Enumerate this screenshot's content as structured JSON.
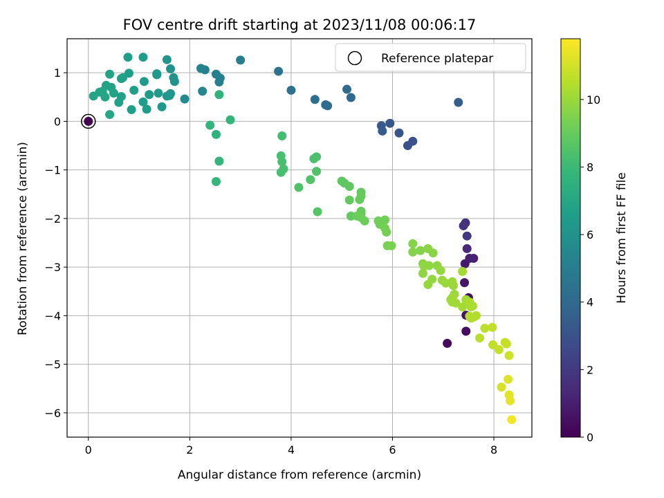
{
  "chart_data": {
    "type": "scatter",
    "title": "FOV centre drift starting at 2023/11/08 00:06:17",
    "xlabel": "Angular distance from reference (arcmin)",
    "ylabel": "Rotation from reference (arcmin)",
    "xlim": [
      -0.42,
      8.75
    ],
    "ylim": [
      -6.5,
      1.7
    ],
    "xticks": [
      0,
      2,
      4,
      6,
      8
    ],
    "yticks": [
      1,
      0,
      -1,
      -2,
      -3,
      -4,
      -5,
      -6
    ],
    "grid": true,
    "legend": {
      "position": "top-right",
      "entries": [
        "Reference platepar"
      ]
    },
    "reference_point": {
      "x": 0,
      "y": 0
    },
    "colorbar": {
      "label": "Hours from first FF file",
      "colormap": "viridis",
      "range": [
        0,
        11.8
      ],
      "ticks": [
        0,
        2,
        4,
        6,
        8,
        10
      ]
    },
    "points": [
      [
        0,
        0,
        0
      ],
      [
        7.08,
        -4.57,
        0.3
      ],
      [
        7.45,
        -4.32,
        0.4
      ],
      [
        7.45,
        -3.99,
        0.6
      ],
      [
        7.5,
        -3.63,
        0.6
      ],
      [
        7.42,
        -3.32,
        0.7
      ],
      [
        7.43,
        -2.93,
        0.8
      ],
      [
        7.52,
        -2.82,
        1.0
      ],
      [
        7.6,
        -2.82,
        1.1
      ],
      [
        7.47,
        -2.62,
        1.3
      ],
      [
        7.44,
        -2.09,
        1.7
      ],
      [
        7.4,
        -2.15,
        1.8
      ],
      [
        7.47,
        -2.36,
        2.0
      ],
      [
        6.4,
        -0.41,
        3.0
      ],
      [
        6.3,
        -0.5,
        3.0
      ],
      [
        6.13,
        -0.24,
        3.1
      ],
      [
        5.95,
        -0.04,
        3.2
      ],
      [
        5.78,
        -0.09,
        3.3
      ],
      [
        5.8,
        -0.2,
        3.4
      ],
      [
        7.3,
        0.39,
        3.5
      ],
      [
        5.18,
        0.49,
        4.0
      ],
      [
        5.1,
        0.66,
        4.1
      ],
      [
        4.72,
        0.32,
        4.2
      ],
      [
        4.68,
        0.34,
        4.2
      ],
      [
        4.47,
        0.45,
        4.3
      ],
      [
        4.0,
        0.64,
        4.4
      ],
      [
        3.75,
        1.03,
        4.5
      ],
      [
        3.0,
        1.26,
        5.0
      ],
      [
        2.58,
        0.81,
        5.1
      ],
      [
        2.6,
        0.89,
        5.1
      ],
      [
        2.52,
        0.97,
        5.1
      ],
      [
        2.3,
        1.06,
        5.2
      ],
      [
        2.22,
        1.09,
        5.3
      ],
      [
        2.25,
        0.62,
        5.5
      ],
      [
        1.9,
        0.46,
        5.6
      ],
      [
        1.7,
        0.82,
        6.0
      ],
      [
        1.68,
        0.9,
        6.0
      ],
      [
        1.62,
        1.08,
        6.0
      ],
      [
        1.55,
        1.27,
        6.1
      ],
      [
        1.6,
        0.53,
        6.2
      ],
      [
        1.62,
        0.57,
        6.2
      ],
      [
        1.55,
        0.52,
        6.3
      ],
      [
        1.45,
        0.3,
        6.3
      ],
      [
        1.35,
        0.96,
        6.3
      ],
      [
        1.35,
        0.98,
        6.3
      ],
      [
        1.38,
        0.58,
        6.4
      ],
      [
        1.2,
        0.55,
        6.4
      ],
      [
        1.1,
        0.82,
        6.4
      ],
      [
        1.08,
        0.4,
        6.5
      ],
      [
        1.15,
        0.25,
        6.5
      ],
      [
        1.08,
        1.32,
        6.5
      ],
      [
        0.9,
        0.64,
        6.6
      ],
      [
        0.8,
        0.99,
        6.6
      ],
      [
        0.78,
        1.32,
        6.6
      ],
      [
        0.85,
        0.24,
        6.6
      ],
      [
        0.65,
        0.88,
        6.7
      ],
      [
        0.68,
        0.9,
        6.7
      ],
      [
        0.65,
        0.51,
        6.7
      ],
      [
        0.6,
        0.39,
        6.7
      ],
      [
        0.5,
        0.58,
        6.8
      ],
      [
        0.45,
        0.7,
        6.8
      ],
      [
        0.42,
        0.97,
        6.8
      ],
      [
        0.35,
        0.74,
        6.8
      ],
      [
        0.28,
        0.62,
        6.9
      ],
      [
        0.33,
        0.5,
        6.9
      ],
      [
        0.22,
        0.6,
        6.9
      ],
      [
        0.1,
        0.52,
        6.9
      ],
      [
        0.42,
        0.14,
        7.0
      ],
      [
        2.58,
        0.55,
        7.6
      ],
      [
        2.52,
        -0.27,
        7.6
      ],
      [
        2.4,
        -0.08,
        7.7
      ],
      [
        2.8,
        0.03,
        7.7
      ],
      [
        2.58,
        -0.82,
        7.7
      ],
      [
        2.52,
        -1.24,
        7.8
      ],
      [
        3.82,
        -0.3,
        8.2
      ],
      [
        3.8,
        -0.71,
        8.3
      ],
      [
        3.82,
        -0.83,
        8.3
      ],
      [
        3.85,
        -0.98,
        8.3
      ],
      [
        3.8,
        -1.05,
        8.3
      ],
      [
        4.5,
        -0.73,
        8.4
      ],
      [
        4.45,
        -0.77,
        8.4
      ],
      [
        4.5,
        -1.03,
        8.5
      ],
      [
        4.38,
        -1.2,
        8.5
      ],
      [
        4.15,
        -1.36,
        8.5
      ],
      [
        4.52,
        -1.86,
        8.6
      ],
      [
        5.0,
        -1.23,
        8.8
      ],
      [
        5.05,
        -1.27,
        8.8
      ],
      [
        5.15,
        -1.34,
        8.8
      ],
      [
        5.15,
        -1.62,
        8.9
      ],
      [
        5.18,
        -1.95,
        8.9
      ],
      [
        5.38,
        -1.46,
        8.9
      ],
      [
        5.38,
        -1.54,
        9.0
      ],
      [
        5.35,
        -1.61,
        9.0
      ],
      [
        5.38,
        -1.9,
        9.0
      ],
      [
        5.38,
        -1.85,
        9.0
      ],
      [
        5.3,
        -1.95,
        9.1
      ],
      [
        5.38,
        -1.98,
        9.1
      ],
      [
        5.45,
        -2.05,
        9.1
      ],
      [
        5.72,
        -2.05,
        9.2
      ],
      [
        5.75,
        -2.12,
        9.2
      ],
      [
        5.85,
        -2.03,
        9.2
      ],
      [
        5.85,
        -2.2,
        9.3
      ],
      [
        5.88,
        -2.28,
        9.3
      ],
      [
        5.9,
        -2.56,
        9.3
      ],
      [
        5.98,
        -2.56,
        9.4
      ],
      [
        6.4,
        -2.52,
        9.6
      ],
      [
        6.4,
        -2.69,
        9.6
      ],
      [
        6.55,
        -2.66,
        9.6
      ],
      [
        6.7,
        -2.62,
        9.7
      ],
      [
        6.8,
        -2.71,
        9.7
      ],
      [
        6.6,
        -2.93,
        9.7
      ],
      [
        6.6,
        -3.13,
        9.8
      ],
      [
        6.62,
        -2.98,
        9.8
      ],
      [
        6.72,
        -2.97,
        9.8
      ],
      [
        6.88,
        -2.97,
        9.8
      ],
      [
        6.95,
        -3.07,
        9.9
      ],
      [
        6.7,
        -3.36,
        9.9
      ],
      [
        6.78,
        -3.25,
        9.9
      ],
      [
        6.98,
        -3.27,
        10.0
      ],
      [
        7.05,
        -3.33,
        10.0
      ],
      [
        7.18,
        -3.3,
        10.0
      ],
      [
        7.2,
        -3.38,
        10.0
      ],
      [
        7.22,
        -3.56,
        10.0
      ],
      [
        7.18,
        -3.63,
        10.1
      ],
      [
        7.15,
        -3.67,
        10.1
      ],
      [
        7.18,
        -3.72,
        10.1
      ],
      [
        7.25,
        -3.74,
        10.1
      ],
      [
        7.38,
        -3.82,
        10.2
      ],
      [
        7.38,
        -3.09,
        10.2
      ],
      [
        7.45,
        -3.67,
        10.2
      ],
      [
        7.48,
        -3.73,
        10.2
      ],
      [
        7.52,
        -3.72,
        10.3
      ],
      [
        7.55,
        -3.82,
        10.3
      ],
      [
        7.58,
        -3.8,
        10.3
      ],
      [
        7.52,
        -4.01,
        10.4
      ],
      [
        7.55,
        -4.05,
        10.4
      ],
      [
        7.6,
        -4.03,
        10.4
      ],
      [
        7.65,
        -4.0,
        10.4
      ],
      [
        7.72,
        -4.46,
        10.6
      ],
      [
        7.82,
        -4.26,
        10.6
      ],
      [
        7.97,
        -4.24,
        10.7
      ],
      [
        7.98,
        -4.6,
        10.7
      ],
      [
        8.1,
        -4.7,
        10.8
      ],
      [
        8.22,
        -4.55,
        10.8
      ],
      [
        8.25,
        -4.58,
        10.8
      ],
      [
        8.3,
        -4.82,
        10.9
      ],
      [
        8.15,
        -5.47,
        11.1
      ],
      [
        8.28,
        -5.31,
        11.2
      ],
      [
        8.3,
        -5.63,
        11.3
      ],
      [
        8.32,
        -5.75,
        11.4
      ],
      [
        8.35,
        -6.14,
        11.6
      ]
    ]
  }
}
